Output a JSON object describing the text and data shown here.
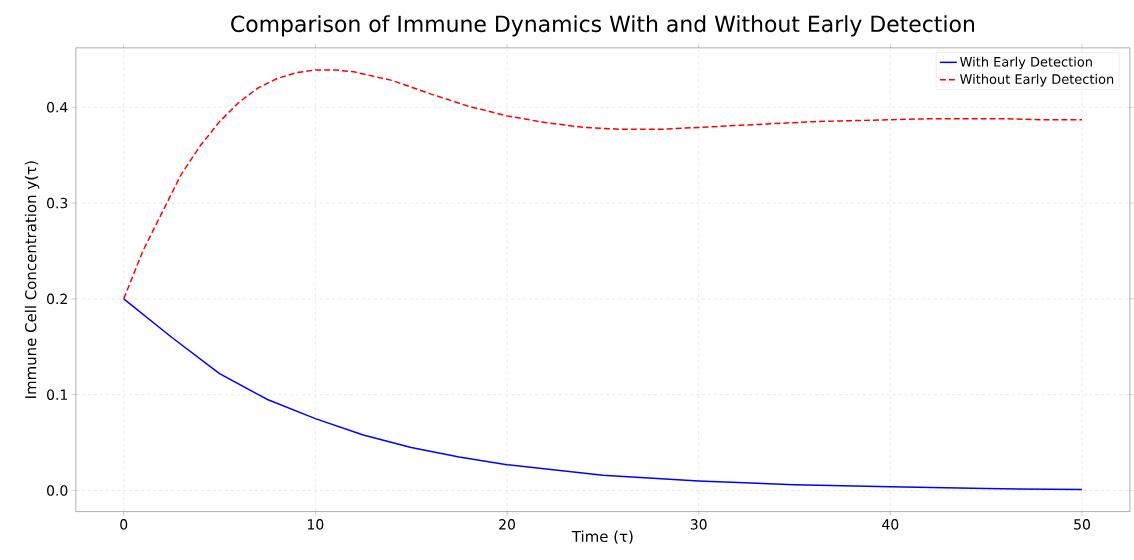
{
  "chart_data": {
    "type": "line",
    "title": "Comparison of Immune Dynamics With and Without Early Detection",
    "xlabel": "Time (τ)",
    "ylabel": "Immune Cell Concentration y(τ)",
    "series": [
      {
        "name": "With Early Detection",
        "color": "#0000ff",
        "line_style": "solid",
        "x": [
          0,
          2.5,
          5,
          7.5,
          10,
          12.5,
          15,
          17.5,
          20,
          25,
          30,
          35,
          40,
          45,
          50
        ],
        "values": [
          0.2,
          0.16,
          0.122,
          0.095,
          0.075,
          0.058,
          0.045,
          0.035,
          0.027,
          0.016,
          0.01,
          0.006,
          0.004,
          0.002,
          0.001
        ]
      },
      {
        "name": "Without Early Detection",
        "color": "#ff0000",
        "line_style": "dashed",
        "x": [
          0,
          1,
          2,
          3,
          4,
          5,
          6,
          7,
          8,
          9,
          10,
          11,
          12,
          14,
          16,
          18,
          20,
          22,
          24,
          26,
          28,
          30,
          32,
          34,
          36,
          38,
          40,
          42,
          44,
          46,
          48,
          50
        ],
        "values": [
          0.2,
          0.25,
          0.29,
          0.33,
          0.36,
          0.385,
          0.405,
          0.42,
          0.43,
          0.436,
          0.439,
          0.439,
          0.437,
          0.428,
          0.414,
          0.401,
          0.391,
          0.384,
          0.379,
          0.377,
          0.377,
          0.379,
          0.381,
          0.383,
          0.385,
          0.386,
          0.387,
          0.388,
          0.388,
          0.388,
          0.387,
          0.387
        ]
      }
    ],
    "xlim": [
      -2.5,
      52.5
    ],
    "ylim": [
      -0.022,
      0.462
    ],
    "xticks": [
      0,
      10,
      20,
      30,
      40,
      50
    ],
    "yticks": [
      {
        "value": 0,
        "label": "0.0"
      },
      {
        "value": 0.1,
        "label": "0.1"
      },
      {
        "value": 0.2,
        "label": "0.2"
      },
      {
        "value": 0.3,
        "label": "0.3"
      },
      {
        "value": 0.4,
        "label": "0.4"
      }
    ],
    "grid": true,
    "legend": "top right"
  }
}
